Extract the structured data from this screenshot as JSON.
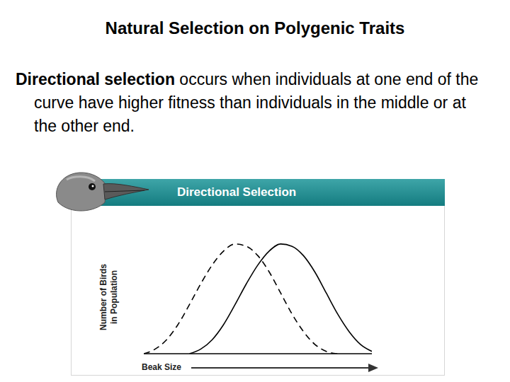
{
  "page": {
    "title": "Natural Selection on Polygenic Traits",
    "term": "Directional selection",
    "text": " occurs when individuals at one end of the curve have higher fitness than individuals in the middle or at the other end."
  },
  "chart_data": {
    "type": "line",
    "title": "Directional Selection",
    "x_label": "Beak Size",
    "y_label": "Number of Birds in Population",
    "x": [
      0,
      5,
      10,
      15,
      20,
      25,
      30,
      35,
      40,
      45,
      50,
      55,
      60,
      65,
      70,
      75,
      80,
      85,
      90,
      95,
      100
    ],
    "series": [
      {
        "color": "#000000",
        "line_style": "dashed",
        "values": [
          0,
          4,
          12,
          25,
          42,
          60,
          76,
          88,
          94,
          92,
          84,
          70,
          52,
          34,
          19,
          8,
          2,
          0,
          null,
          null,
          null
        ]
      },
      {
        "color": "#000000",
        "line_style": "solid",
        "values": [
          null,
          null,
          null,
          null,
          0,
          4,
          12,
          25,
          42,
          60,
          76,
          88,
          94,
          92,
          84,
          70,
          52,
          34,
          19,
          8,
          2
        ]
      }
    ],
    "xlim": [
      0,
      100
    ],
    "ylim": [
      0,
      100
    ],
    "tick_labels": false,
    "grid": false
  }
}
